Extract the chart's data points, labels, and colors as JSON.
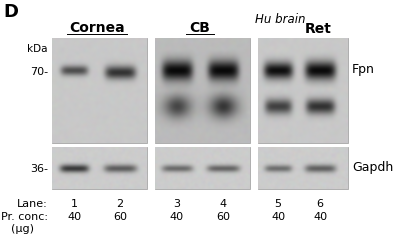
{
  "panel_label": "D",
  "background_color": "#ffffff",
  "top_blot_bg": "#c8c8c8",
  "bot_blot_bg": "#cccccc",
  "group_labels": [
    "Cornea",
    "CB"
  ],
  "hu_brain_label": "Hu brain",
  "ret_label": "Ret",
  "kda_labels": [
    "kDa",
    "70-",
    "36-"
  ],
  "right_labels": [
    "Fpn",
    "Gapdh"
  ],
  "lane_label": "Lane:",
  "pr_conc_label": "Pr. conc:",
  "ug_label": "(μg)",
  "lanes": [
    "1",
    "2",
    "3",
    "4",
    "5",
    "6"
  ],
  "pr_conc": [
    "40",
    "60",
    "40",
    "60",
    "40",
    "40"
  ]
}
